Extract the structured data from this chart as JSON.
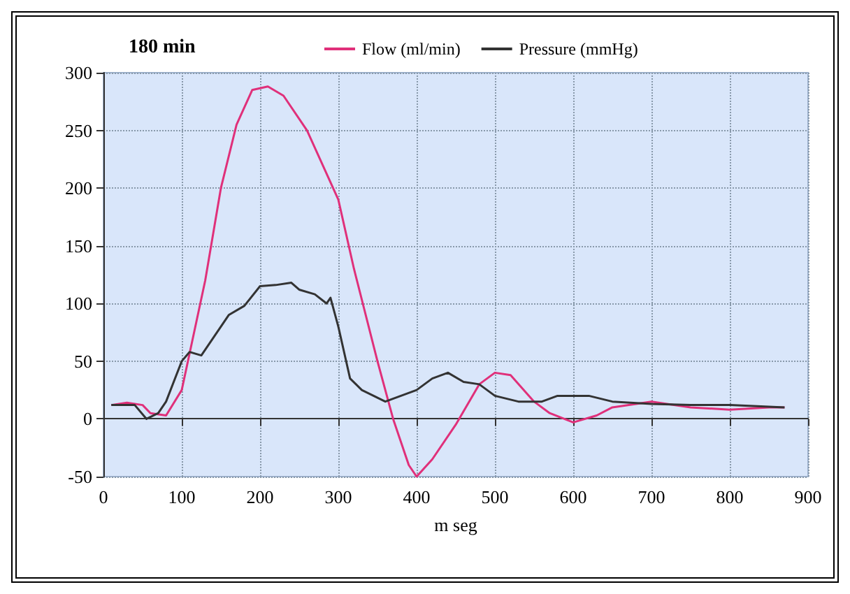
{
  "chart_data": {
    "type": "line",
    "title": "180 min",
    "xlabel": "m seg",
    "xlim": [
      0,
      900
    ],
    "xticks": [
      0,
      100,
      200,
      300,
      400,
      500,
      600,
      700,
      800,
      900
    ],
    "ylim": [
      -50,
      300
    ],
    "yticks": [
      -50,
      0,
      50,
      100,
      150,
      200,
      250,
      300
    ],
    "grid": true,
    "legend": "top",
    "marker": "none",
    "line_style": "solid",
    "series": [
      {
        "name": "Flow (ml/min)",
        "color": "#e0307a",
        "x": [
          10,
          30,
          50,
          60,
          80,
          100,
          130,
          150,
          170,
          190,
          210,
          230,
          260,
          290,
          300,
          320,
          350,
          370,
          390,
          400,
          420,
          450,
          480,
          500,
          520,
          550,
          570,
          600,
          630,
          650,
          700,
          750,
          800,
          850,
          870
        ],
        "values": [
          12,
          14,
          12,
          5,
          3,
          25,
          120,
          200,
          255,
          285,
          288,
          280,
          250,
          205,
          190,
          130,
          50,
          0,
          -40,
          -50,
          -35,
          -5,
          30,
          40,
          38,
          15,
          5,
          -3,
          3,
          10,
          15,
          10,
          8,
          10,
          10
        ]
      },
      {
        "name": "Pressure (mmHg)",
        "color": "#333333",
        "x": [
          10,
          40,
          55,
          70,
          80,
          100,
          110,
          125,
          140,
          160,
          180,
          200,
          220,
          240,
          250,
          270,
          285,
          290,
          300,
          315,
          330,
          360,
          380,
          400,
          420,
          440,
          460,
          480,
          500,
          530,
          560,
          580,
          620,
          650,
          700,
          750,
          800,
          870
        ],
        "values": [
          12,
          12,
          0,
          5,
          15,
          50,
          58,
          55,
          70,
          90,
          98,
          115,
          116,
          118,
          112,
          108,
          100,
          105,
          80,
          35,
          25,
          15,
          20,
          25,
          35,
          40,
          32,
          30,
          20,
          15,
          15,
          20,
          20,
          15,
          13,
          12,
          12,
          10
        ]
      }
    ]
  }
}
